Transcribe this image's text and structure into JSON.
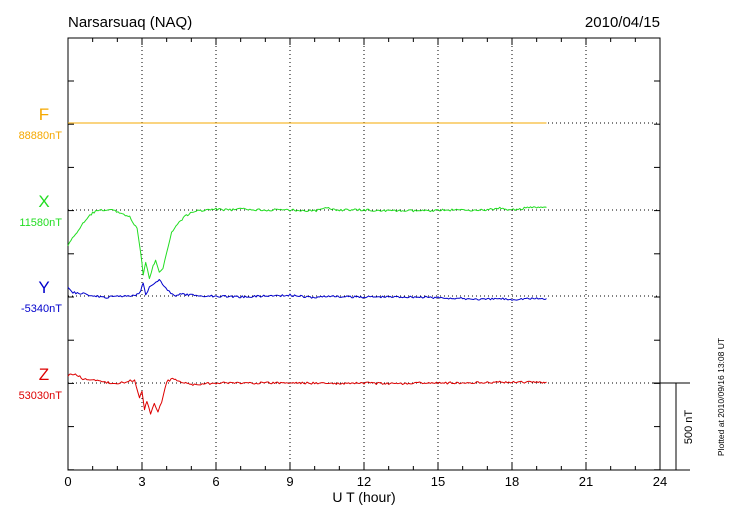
{
  "chart_data": {
    "type": "line",
    "title": "Narsarsuaq (NAQ)",
    "date": "2010/04/15",
    "xlabel": "U T (hour)",
    "xlim": [
      0,
      24
    ],
    "x_ticks": [
      "0",
      "3",
      "6",
      "9",
      "12",
      "15",
      "18",
      "21",
      "24"
    ],
    "scale_label": "500 nT",
    "scale_nT": 500,
    "plotted_note": "Plotted at 2010/09/16 13:08 UT",
    "grid": true,
    "series": [
      {
        "name": "F",
        "baseline_label": "88880nT",
        "color": "#f5a800",
        "x": [
          0,
          19.4
        ],
        "y": [
          0,
          0
        ]
      },
      {
        "name": "X",
        "baseline_label": "11580nT",
        "color": "#22dd22",
        "x": [
          0,
          0.3,
          0.6,
          1.0,
          1.4,
          1.8,
          2.2,
          2.5,
          2.8,
          2.95,
          3.05,
          3.15,
          3.3,
          3.45,
          3.55,
          3.7,
          3.85,
          4.0,
          4.2,
          4.5,
          4.8,
          5.2,
          5.6,
          6.0,
          6.5,
          7.0,
          8.0,
          9.0,
          10.0,
          10.5,
          11.0,
          12.0,
          13.0,
          14.0,
          14.5,
          15.0,
          16.0,
          17.0,
          17.5,
          18.0,
          18.5,
          19.0,
          19.4
        ],
        "y": [
          -200,
          -140,
          -80,
          -15,
          0,
          0,
          -20,
          -40,
          -110,
          -250,
          -370,
          -300,
          -400,
          -320,
          -290,
          -360,
          -330,
          -240,
          -130,
          -70,
          -30,
          -5,
          0,
          5,
          0,
          5,
          0,
          0,
          -5,
          10,
          0,
          0,
          -5,
          -5,
          -5,
          0,
          0,
          0,
          10,
          0,
          10,
          15,
          15
        ]
      },
      {
        "name": "Y",
        "baseline_label": "-5340nT",
        "color": "#0000cc",
        "x": [
          0,
          0.2,
          0.5,
          0.9,
          1.5,
          2.0,
          2.5,
          2.8,
          2.95,
          3.05,
          3.15,
          3.3,
          3.5,
          3.7,
          3.9,
          4.1,
          4.3,
          4.6,
          5.0,
          5.5,
          6.0,
          7.0,
          8.0,
          9.0,
          10.0,
          10.5,
          11.0,
          12.0,
          13.0,
          14.0,
          15.0,
          16.0,
          17.0,
          17.5,
          18.0,
          18.5,
          19.0,
          19.4
        ],
        "y": [
          55,
          20,
          15,
          5,
          -10,
          0,
          0,
          10,
          30,
          80,
          10,
          50,
          70,
          95,
          50,
          30,
          0,
          10,
          5,
          0,
          0,
          -5,
          0,
          5,
          -10,
          0,
          -5,
          -5,
          -5,
          -5,
          -10,
          -15,
          -20,
          -15,
          -20,
          -15,
          -15,
          -15
        ]
      },
      {
        "name": "Z",
        "baseline_label": "53030nT",
        "color": "#dd0000",
        "x": [
          0,
          0.3,
          0.6,
          1.0,
          1.5,
          2.0,
          2.4,
          2.7,
          2.9,
          3.0,
          3.1,
          3.2,
          3.35,
          3.5,
          3.65,
          3.8,
          4.0,
          4.3,
          4.6,
          5.0,
          5.5,
          6.0,
          7.0,
          8.0,
          9.0,
          10.0,
          11.0,
          12.0,
          13.0,
          14.0,
          15.0,
          16.0,
          17.0,
          18.0,
          19.0,
          19.4
        ],
        "y": [
          45,
          50,
          25,
          15,
          5,
          -5,
          10,
          15,
          -80,
          -50,
          -150,
          -100,
          -175,
          -120,
          -165,
          -110,
          10,
          25,
          5,
          -10,
          -5,
          0,
          0,
          0,
          0,
          0,
          -5,
          0,
          -5,
          0,
          0,
          0,
          5,
          5,
          5,
          5
        ]
      }
    ]
  }
}
